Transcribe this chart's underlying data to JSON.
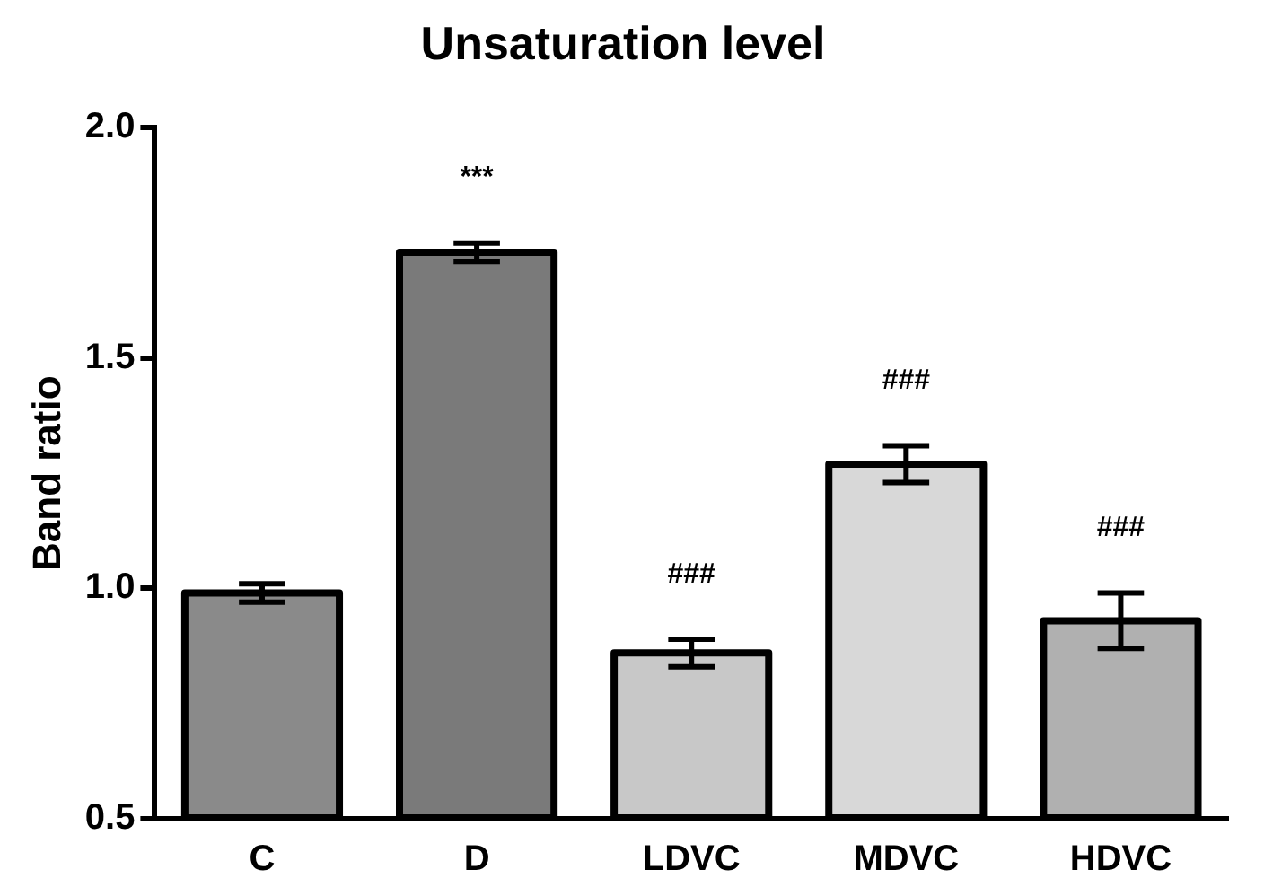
{
  "chart_data": {
    "type": "bar",
    "title": "Unsaturation level",
    "ylabel": "Band ratio",
    "categories": [
      "C",
      "D",
      "LDVC",
      "MDVC",
      "HDVC"
    ],
    "values": [
      0.99,
      1.73,
      0.86,
      1.27,
      0.93
    ],
    "errors": [
      0.02,
      0.02,
      0.03,
      0.04,
      0.06
    ],
    "colors": [
      "#8a8a8a",
      "#7a7a7a",
      "#c8c8c8",
      "#d8d8d8",
      "#b0b0b0"
    ],
    "ylim": [
      0.5,
      2.0
    ],
    "yticks": [
      {
        "value": 0.5,
        "label": "0.5"
      },
      {
        "value": 1,
        "label": "1.0"
      },
      {
        "value": 1.5,
        "label": "1.5"
      },
      {
        "value": 2,
        "label": "2.0"
      }
    ],
    "grid": false,
    "legend": false,
    "annotations": [
      "***",
      "###",
      "###",
      "###"
    ]
  }
}
